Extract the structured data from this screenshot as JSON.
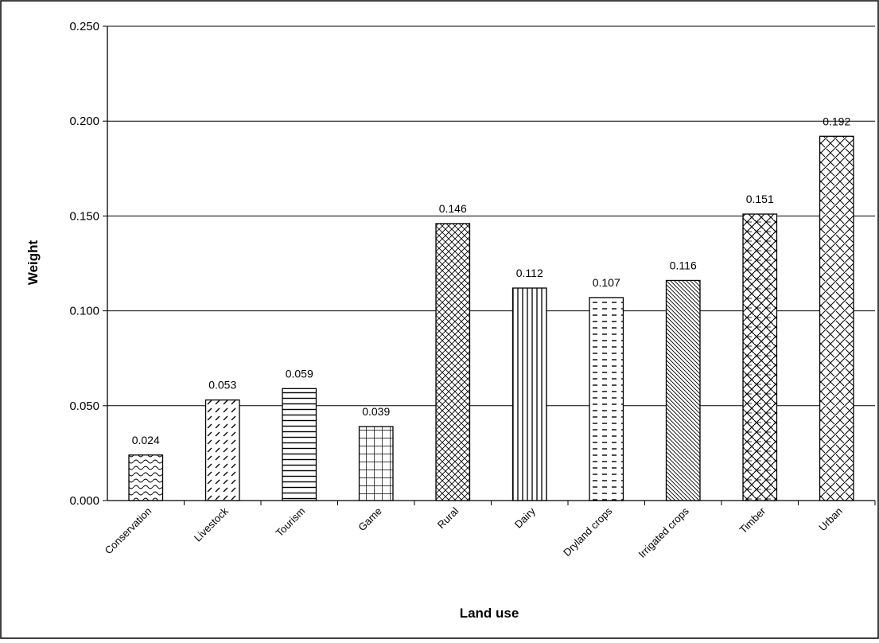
{
  "chart_data": {
    "type": "bar",
    "title": "",
    "xlabel": "Land use",
    "ylabel": "Weight",
    "ylim": [
      0,
      0.25
    ],
    "yticks": [
      "0.000",
      "0.050",
      "0.100",
      "0.150",
      "0.200",
      "0.250"
    ],
    "grid": "horizontal",
    "legend": "none",
    "categories": [
      "Conservation",
      "Livestock",
      "Tourism",
      "Game",
      "Rural",
      "Dairy",
      "Dryland crops",
      "Irrigated crops",
      "Timber",
      "Urban"
    ],
    "values": [
      0.024,
      0.053,
      0.059,
      0.039,
      0.146,
      0.112,
      0.107,
      0.116,
      0.151,
      0.192
    ],
    "value_labels": [
      "0.024",
      "0.053",
      "0.059",
      "0.039",
      "0.146",
      "0.112",
      "0.107",
      "0.116",
      "0.151",
      "0.192"
    ],
    "patterns": [
      "wave",
      "diagonal-dash",
      "horizontal-lines",
      "grid",
      "crosshatch",
      "vertical-lines",
      "dashes",
      "diagonal-lines",
      "weave",
      "diagonal-crosshatch"
    ],
    "colors": {
      "bar_fill": "#ffffff",
      "bar_stroke": "#000000",
      "grid": "#000000",
      "axis": "#000000",
      "frame": "#000000"
    }
  }
}
